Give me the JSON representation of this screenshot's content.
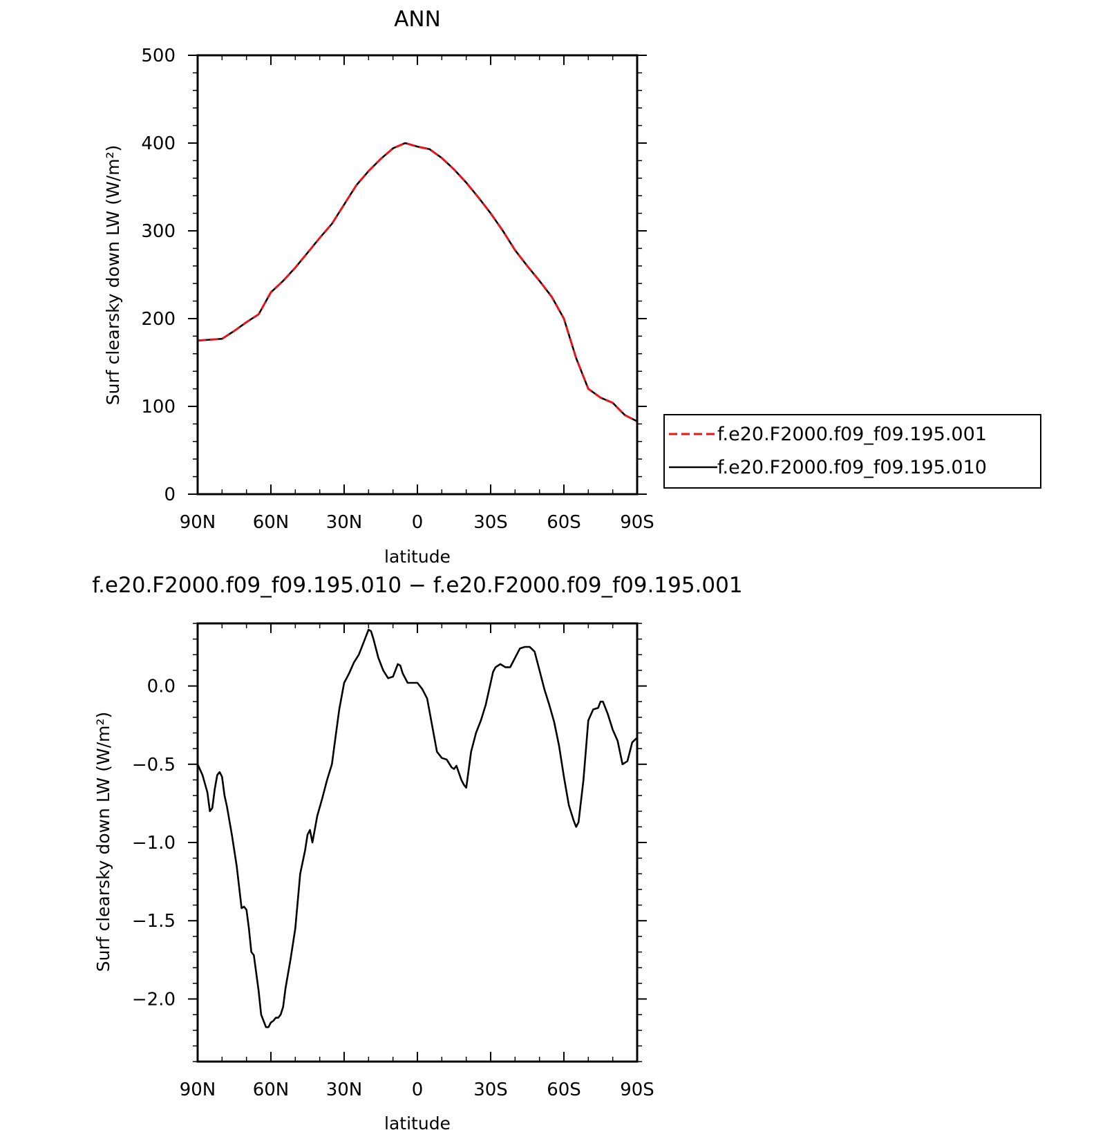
{
  "chart_data": [
    {
      "type": "line",
      "title": "ANN",
      "xlabel": "latitude",
      "ylabel": "Surf clearsky down LW (W/m²)",
      "xlim": [
        90,
        -90
      ],
      "ylim": [
        0,
        500
      ],
      "x_ticks": [
        {
          "value": 90,
          "label": "90N"
        },
        {
          "value": 60,
          "label": "60N"
        },
        {
          "value": 30,
          "label": "30N"
        },
        {
          "value": 0,
          "label": "0"
        },
        {
          "value": -30,
          "label": "30S"
        },
        {
          "value": -60,
          "label": "60S"
        },
        {
          "value": -90,
          "label": "90S"
        }
      ],
      "y_ticks": [
        {
          "value": 0,
          "label": "0"
        },
        {
          "value": 100,
          "label": "100"
        },
        {
          "value": 200,
          "label": "200"
        },
        {
          "value": 300,
          "label": "300"
        },
        {
          "value": 400,
          "label": "400"
        },
        {
          "value": 500,
          "label": "500"
        }
      ],
      "legend": "right",
      "x": [
        90,
        85,
        80,
        75,
        70,
        65,
        60,
        55,
        50,
        45,
        40,
        35,
        30,
        25,
        20,
        15,
        10,
        5,
        0,
        -5,
        -10,
        -15,
        -20,
        -25,
        -30,
        -35,
        -40,
        -45,
        -50,
        -55,
        -60,
        -65,
        -70,
        -75,
        -80,
        -85,
        -90
      ],
      "series": [
        {
          "name": "f.e20.F2000.f09_f09.195.001",
          "color": "#e8141c",
          "dash": "dashed",
          "values": [
            175,
            176,
            177,
            186,
            196,
            205,
            230,
            243,
            258,
            275,
            292,
            308,
            330,
            352,
            368,
            382,
            394,
            400,
            396,
            393,
            383,
            370,
            355,
            338,
            320,
            300,
            278,
            260,
            243,
            225,
            200,
            155,
            120,
            110,
            104,
            90,
            83
          ]
        },
        {
          "name": "f.e20.F2000.f09_f09.195.010",
          "color": "#000000",
          "dash": "solid",
          "values": [
            175,
            176,
            177,
            186,
            196,
            205,
            230,
            243,
            258,
            275,
            292,
            308,
            330,
            352,
            368,
            382,
            394,
            400,
            396,
            393,
            383,
            370,
            355,
            338,
            320,
            300,
            278,
            260,
            243,
            225,
            200,
            155,
            120,
            110,
            104,
            90,
            83
          ]
        }
      ]
    },
    {
      "type": "line",
      "title": "f.e20.F2000.f09_f09.195.010 − f.e20.F2000.f09_f09.195.001",
      "xlabel": "latitude",
      "ylabel": "Surf clearsky down LW (W/m²)",
      "xlim": [
        90,
        -90
      ],
      "ylim": [
        -2.4,
        0.4
      ],
      "x_ticks": [
        {
          "value": 90,
          "label": "90N"
        },
        {
          "value": 60,
          "label": "60N"
        },
        {
          "value": 30,
          "label": "30N"
        },
        {
          "value": 0,
          "label": "0"
        },
        {
          "value": -30,
          "label": "30S"
        },
        {
          "value": -60,
          "label": "60S"
        },
        {
          "value": -90,
          "label": "90S"
        }
      ],
      "y_ticks": [
        {
          "value": 0.0,
          "label": "0.0"
        },
        {
          "value": -0.5,
          "label": "−0.5"
        },
        {
          "value": -1.0,
          "label": "−1.0"
        },
        {
          "value": -1.5,
          "label": "−1.5"
        },
        {
          "value": -2.0,
          "label": "−2.0"
        }
      ],
      "x": [
        90,
        88,
        86,
        85,
        84,
        83,
        82,
        81,
        80,
        79,
        78,
        76,
        74,
        72,
        71,
        70,
        69,
        68,
        67,
        65,
        64,
        62,
        61,
        60,
        59,
        58,
        57,
        56,
        55,
        54,
        52,
        50,
        48,
        46,
        45,
        44,
        43,
        41,
        39,
        37,
        35,
        34,
        32,
        30,
        28,
        26,
        24,
        22,
        20,
        19,
        18,
        16,
        14,
        12,
        10,
        8,
        7,
        6,
        4,
        2,
        0,
        -2,
        -4,
        -6,
        -8,
        -10,
        -12,
        -14,
        -15,
        -16,
        -18,
        -19,
        -20,
        -22,
        -24,
        -26,
        -28,
        -30,
        -31,
        -32,
        -34,
        -36,
        -38,
        -40,
        -42,
        -44,
        -46,
        -48,
        -50,
        -52,
        -54,
        -56,
        -58,
        -60,
        -62,
        -64,
        -65,
        -66,
        -68,
        -70,
        -72,
        -74,
        -75,
        -76,
        -78,
        -80,
        -82,
        -84,
        -86,
        -88,
        -90
      ],
      "series": [
        {
          "name": "",
          "color": "#000000",
          "dash": "solid",
          "values": [
            -0.5,
            -0.57,
            -0.68,
            -0.8,
            -0.78,
            -0.66,
            -0.57,
            -0.55,
            -0.58,
            -0.7,
            -0.77,
            -0.95,
            -1.15,
            -1.42,
            -1.41,
            -1.43,
            -1.55,
            -1.7,
            -1.72,
            -1.95,
            -2.1,
            -2.18,
            -2.18,
            -2.15,
            -2.14,
            -2.12,
            -2.12,
            -2.1,
            -2.05,
            -1.93,
            -1.75,
            -1.55,
            -1.2,
            -1.05,
            -0.95,
            -0.92,
            -1.0,
            -0.83,
            -0.72,
            -0.6,
            -0.5,
            -0.38,
            -0.15,
            0.02,
            0.08,
            0.15,
            0.2,
            0.28,
            0.36,
            0.35,
            0.3,
            0.18,
            0.1,
            0.05,
            0.06,
            0.14,
            0.13,
            0.08,
            0.02,
            0.02,
            0.02,
            -0.02,
            -0.08,
            -0.25,
            -0.42,
            -0.46,
            -0.47,
            -0.52,
            -0.53,
            -0.51,
            -0.6,
            -0.63,
            -0.65,
            -0.42,
            -0.3,
            -0.22,
            -0.12,
            0.02,
            0.09,
            0.12,
            0.14,
            0.12,
            0.12,
            0.18,
            0.24,
            0.25,
            0.25,
            0.22,
            0.1,
            -0.02,
            -0.12,
            -0.23,
            -0.38,
            -0.58,
            -0.76,
            -0.86,
            -0.9,
            -0.87,
            -0.6,
            -0.22,
            -0.15,
            -0.14,
            -0.1,
            -0.1,
            -0.18,
            -0.28,
            -0.35,
            -0.5,
            -0.48,
            -0.36,
            -0.33
          ]
        }
      ]
    }
  ]
}
